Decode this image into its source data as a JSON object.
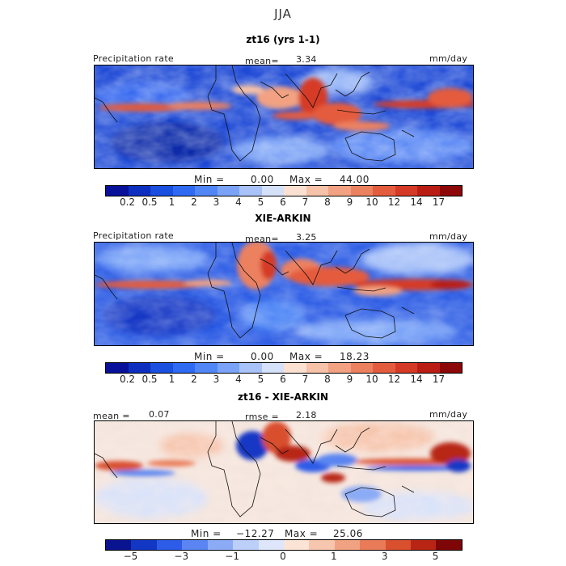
{
  "season": "JJA",
  "panels": [
    {
      "title": "zt16 (yrs 1-1)",
      "left_label": "Precipitation rate",
      "mean_label": "mean=",
      "mean_value": "3.34",
      "units": "mm/day",
      "min_label": "Min =",
      "min_value": "0.00",
      "max_label": "Max =",
      "max_value": "44.00"
    },
    {
      "title": "XIE-ARKIN",
      "left_label": "Precipitation rate",
      "mean_label": "mean=",
      "mean_value": "3.25",
      "units": "mm/day",
      "min_label": "Min =",
      "min_value": "0.00",
      "max_label": "Max =",
      "max_value": "18.23"
    },
    {
      "title": "zt16 - XIE-ARKIN",
      "left_label": "mean =",
      "left_value": "0.07",
      "mid_label": "rmse =",
      "mid_value": "2.18",
      "units": "mm/day",
      "min_label": "Min =",
      "min_value": "−12.27",
      "max_label": "Max =",
      "max_value": "25.06"
    }
  ],
  "precip_colorbar": {
    "colors": [
      "#08119a",
      "#0c2fc0",
      "#1a4fe0",
      "#2f6af2",
      "#5086f5",
      "#7aa3f7",
      "#a9c2f8",
      "#d4e1f9",
      "#fbe1d2",
      "#f6c2a8",
      "#f2a282",
      "#ec8160",
      "#e45c3e",
      "#d53a26",
      "#b91d14",
      "#8d0808"
    ],
    "ticks": [
      "0.2",
      "0.5",
      "1",
      "2",
      "3",
      "4",
      "5",
      "6",
      "7",
      "8",
      "9",
      "10",
      "12",
      "14",
      "17"
    ]
  },
  "diff_colorbar": {
    "colors": [
      "#0a1490",
      "#1237c5",
      "#2d5ce8",
      "#5a85f2",
      "#8cabf6",
      "#bccff8",
      "#ddE6fa",
      "#fbe3d6",
      "#f6c6ae",
      "#f0a283",
      "#e97b58",
      "#d9502f",
      "#b82515",
      "#7e0606"
    ],
    "ticks": [
      "−5",
      "−3",
      "−1",
      "0",
      "1",
      "3",
      "5"
    ]
  }
}
